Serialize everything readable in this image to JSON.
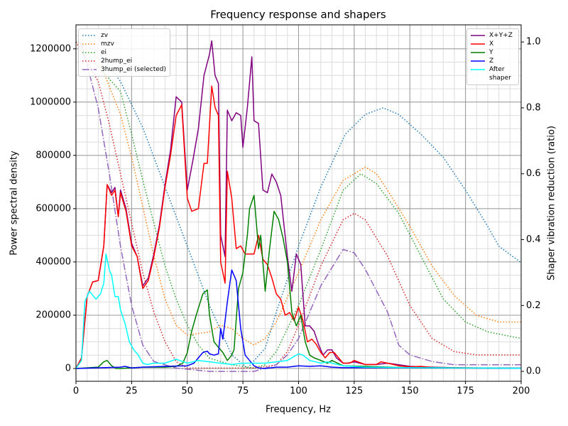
{
  "chart_data": {
    "type": "line",
    "title": "Frequency response and shapers",
    "x_label": "Frequency, Hz",
    "y_label": "Power spectral density",
    "y2_label": "Shaper vibration reduction (ratio)",
    "xlim": [
      0,
      200
    ],
    "xticks": [
      0,
      25,
      50,
      75,
      100,
      125,
      150,
      175,
      200
    ],
    "ylim": [
      -48000,
      1290000
    ],
    "yticks": [
      0,
      200000,
      400000,
      600000,
      800000,
      1000000,
      1200000
    ],
    "y2lim": [
      -0.03,
      1.052
    ],
    "y2ticks": [
      {
        "value": 0,
        "label": "0.0"
      },
      {
        "value": 0.2,
        "label": "0.2"
      },
      {
        "value": 0.4,
        "label": "0.4"
      },
      {
        "value": 0.6,
        "label": "0.6"
      },
      {
        "value": 0.8,
        "label": "0.8"
      },
      {
        "value": 1.0,
        "label": "1.0"
      }
    ],
    "grid": true,
    "minor_grid": {
      "x": 5,
      "y": 50000
    },
    "legend_loc": {
      "y2": "upper left",
      "y": "upper right"
    },
    "series": [
      {
        "name": "zv",
        "color": "#1f77b4",
        "style": "dotted",
        "axis": "y2",
        "x": [
          0,
          10,
          20,
          30,
          40,
          50,
          60,
          70,
          77,
          85,
          90,
          100,
          110,
          121,
          130,
          138,
          145,
          155,
          165,
          175,
          185,
          190,
          200
        ],
        "values": [
          1.0,
          0.97,
          0.88,
          0.74,
          0.56,
          0.38,
          0.2,
          0.05,
          0.01,
          0.07,
          0.18,
          0.38,
          0.56,
          0.72,
          0.78,
          0.8,
          0.78,
          0.72,
          0.65,
          0.55,
          0.44,
          0.38,
          0.33
        ]
      },
      {
        "name": "mzv",
        "color": "#ff7f0e",
        "style": "dotted",
        "axis": "y2",
        "x": [
          0,
          10,
          20,
          25,
          30,
          35,
          40,
          45,
          50,
          60,
          65,
          70,
          75,
          80,
          85,
          90,
          100,
          110,
          120,
          130,
          135,
          140,
          150,
          160,
          170,
          180,
          190,
          200
        ],
        "values": [
          1.0,
          0.95,
          0.78,
          0.65,
          0.5,
          0.35,
          0.22,
          0.14,
          0.11,
          0.12,
          0.14,
          0.13,
          0.1,
          0.08,
          0.1,
          0.15,
          0.3,
          0.46,
          0.58,
          0.62,
          0.6,
          0.55,
          0.44,
          0.32,
          0.23,
          0.17,
          0.15,
          0.15
        ]
      },
      {
        "name": "ei",
        "color": "#2ca02c",
        "style": "dotted",
        "axis": "y2",
        "x": [
          0,
          20,
          25,
          30,
          35,
          40,
          45,
          50,
          55,
          60,
          65,
          70,
          80,
          85,
          90,
          100,
          110,
          120,
          128,
          135,
          145,
          155,
          165,
          175,
          185,
          200
        ],
        "values": [
          1.0,
          0.85,
          0.72,
          0.58,
          0.45,
          0.32,
          0.22,
          0.14,
          0.08,
          0.04,
          0.03,
          0.02,
          0.01,
          0.02,
          0.06,
          0.2,
          0.37,
          0.55,
          0.6,
          0.57,
          0.48,
          0.35,
          0.22,
          0.15,
          0.12,
          0.1
        ]
      },
      {
        "name": "2hump_ei",
        "color": "#d62728",
        "style": "dotted",
        "axis": "y2",
        "x": [
          0,
          10,
          15,
          20,
          25,
          30,
          35,
          40,
          45,
          50,
          60,
          70,
          80,
          90,
          95,
          100,
          110,
          120,
          125,
          130,
          140,
          150,
          160,
          170,
          180,
          200
        ],
        "values": [
          1.0,
          0.88,
          0.75,
          0.6,
          0.45,
          0.3,
          0.18,
          0.09,
          0.03,
          0.01,
          0.01,
          0.01,
          0.01,
          0.02,
          0.06,
          0.14,
          0.32,
          0.46,
          0.48,
          0.46,
          0.35,
          0.2,
          0.1,
          0.06,
          0.05,
          0.05
        ]
      },
      {
        "name": "3hump_ei (selected)",
        "color": "#9467bd",
        "style": "dashdot",
        "axis": "y2",
        "x": [
          2,
          5,
          10,
          15,
          20,
          25,
          30,
          35,
          45,
          60,
          80,
          90,
          95,
          100,
          110,
          120,
          125,
          130,
          140,
          145,
          150,
          160,
          170,
          190,
          200
        ],
        "values": [
          1.0,
          0.93,
          0.8,
          0.6,
          0.38,
          0.2,
          0.08,
          0.03,
          0.01,
          0.0,
          0.0,
          0.02,
          0.05,
          0.1,
          0.26,
          0.37,
          0.36,
          0.31,
          0.18,
          0.08,
          0.05,
          0.03,
          0.02,
          0.02,
          0.02
        ]
      },
      {
        "name": "X+Y+Z",
        "color": "#800080",
        "style": "solid",
        "axis": "y",
        "x": [
          0,
          2.5,
          5,
          7.5,
          10,
          12.5,
          14,
          16,
          17.5,
          19,
          20,
          22.5,
          25,
          27.5,
          30,
          32.5,
          35,
          37.5,
          40,
          42.5,
          45,
          47.5,
          50,
          52.5,
          55,
          57.5,
          60,
          61,
          62.5,
          64,
          65,
          67,
          68,
          70,
          72,
          74,
          75,
          77,
          79,
          80,
          82,
          84,
          86,
          88,
          90,
          92,
          95,
          97,
          99,
          101,
          103,
          105,
          107,
          109,
          111,
          113,
          115,
          117,
          120,
          122,
          125,
          130,
          135,
          140,
          150,
          160,
          170,
          180,
          200
        ],
        "values": [
          0,
          40000,
          270000,
          325000,
          330000,
          460000,
          690000,
          660000,
          680000,
          570000,
          670000,
          600000,
          470000,
          420000,
          310000,
          340000,
          430000,
          540000,
          690000,
          820000,
          1020000,
          1000000,
          670000,
          780000,
          900000,
          1100000,
          1180000,
          1230000,
          1100000,
          1070000,
          500000,
          420000,
          970000,
          930000,
          960000,
          950000,
          830000,
          980000,
          1170000,
          930000,
          920000,
          670000,
          660000,
          730000,
          700000,
          650000,
          420000,
          290000,
          430000,
          390000,
          160000,
          160000,
          140000,
          90000,
          50000,
          70000,
          70000,
          40000,
          20000,
          20000,
          25000,
          15000,
          15000,
          20000,
          8000,
          5000,
          3000,
          2000,
          1000
        ]
      },
      {
        "name": "X",
        "color": "#ff0000",
        "style": "solid",
        "axis": "y",
        "x": [
          0,
          2.5,
          5,
          7.5,
          10,
          12.5,
          14,
          16,
          17.5,
          19,
          20,
          22.5,
          25,
          27.5,
          30,
          32.5,
          35,
          37.5,
          40,
          42.5,
          45,
          47.5,
          50,
          52,
          55,
          57.5,
          59,
          61,
          62.5,
          64,
          65,
          67,
          68,
          70,
          72,
          74,
          76,
          78,
          80,
          82,
          84,
          86,
          88,
          90,
          92,
          94,
          96,
          98,
          100,
          102,
          104,
          106,
          108,
          110,
          112,
          114,
          116,
          118,
          120,
          123,
          125,
          130,
          135,
          137,
          140,
          145,
          150,
          155,
          160,
          170,
          200
        ],
        "values": [
          0,
          40000,
          270000,
          325000,
          330000,
          460000,
          690000,
          650000,
          670000,
          570000,
          660000,
          590000,
          460000,
          420000,
          300000,
          330000,
          420000,
          530000,
          680000,
          800000,
          950000,
          990000,
          640000,
          590000,
          600000,
          770000,
          770000,
          1060000,
          980000,
          950000,
          400000,
          320000,
          740000,
          640000,
          450000,
          460000,
          430000,
          430000,
          430000,
          500000,
          410000,
          390000,
          340000,
          280000,
          260000,
          200000,
          210000,
          180000,
          230000,
          180000,
          100000,
          110000,
          90000,
          60000,
          40000,
          60000,
          60000,
          40000,
          20000,
          20000,
          30000,
          15000,
          15000,
          25000,
          20000,
          10000,
          6000,
          8000,
          4000,
          3000,
          1000
        ]
      },
      {
        "name": "Y",
        "color": "#008000",
        "style": "solid",
        "axis": "y",
        "x": [
          0,
          10,
          12.5,
          14,
          16,
          18,
          20,
          30,
          40,
          45,
          48,
          50,
          52,
          54,
          57,
          59,
          60,
          62,
          64,
          66,
          68,
          70,
          71,
          73,
          75,
          77,
          78,
          80,
          82,
          83,
          85,
          87,
          89,
          91,
          93,
          95,
          97,
          99,
          101,
          103,
          105,
          107,
          110,
          113,
          115,
          120,
          130,
          140,
          150,
          200
        ],
        "values": [
          0,
          5000,
          25000,
          30000,
          10000,
          0,
          0,
          5000,
          5000,
          8000,
          20000,
          60000,
          140000,
          200000,
          280000,
          295000,
          200000,
          100000,
          80000,
          60000,
          30000,
          50000,
          70000,
          300000,
          360000,
          500000,
          600000,
          650000,
          450000,
          500000,
          290000,
          450000,
          590000,
          560000,
          490000,
          400000,
          210000,
          160000,
          200000,
          100000,
          50000,
          40000,
          30000,
          20000,
          30000,
          10000,
          8000,
          5000,
          3000,
          1000
        ]
      },
      {
        "name": "Z",
        "color": "#0000ff",
        "style": "solid",
        "axis": "y",
        "x": [
          0,
          20,
          22,
          25,
          30,
          40,
          50,
          53,
          55,
          57,
          59,
          60,
          62,
          64,
          65,
          66,
          68,
          70,
          72,
          74,
          76,
          78,
          80,
          82,
          85,
          90,
          95,
          100,
          105,
          110,
          115,
          120,
          140,
          200
        ],
        "values": [
          0,
          5000,
          8000,
          2000,
          5000,
          8000,
          10000,
          20000,
          40000,
          60000,
          65000,
          55000,
          50000,
          55000,
          150000,
          110000,
          250000,
          370000,
          330000,
          150000,
          50000,
          30000,
          10000,
          2000,
          0,
          5000,
          5000,
          10000,
          8000,
          10000,
          5000,
          3000,
          3000,
          1000
        ]
      },
      {
        "name": "After\nshaper",
        "color": "#00ffff",
        "style": "solid",
        "axis": "y",
        "x": [
          0,
          2.5,
          4,
          6,
          8,
          9,
          11,
          12.5,
          13.5,
          15,
          16,
          17.5,
          19,
          20,
          22,
          24,
          26,
          28,
          30,
          32,
          35,
          40,
          45,
          50,
          55,
          60,
          65,
          70,
          75,
          80,
          85,
          90,
          95,
          100,
          102,
          105,
          110,
          113,
          115,
          120,
          130,
          150,
          200
        ],
        "values": [
          0,
          30000,
          250000,
          290000,
          270000,
          260000,
          280000,
          320000,
          430000,
          370000,
          350000,
          270000,
          270000,
          220000,
          170000,
          100000,
          70000,
          50000,
          20000,
          15000,
          20000,
          20000,
          35000,
          20000,
          30000,
          25000,
          20000,
          15000,
          20000,
          20000,
          20000,
          25000,
          30000,
          55000,
          50000,
          30000,
          20000,
          25000,
          20000,
          10000,
          5000,
          3000,
          1000
        ]
      }
    ]
  }
}
